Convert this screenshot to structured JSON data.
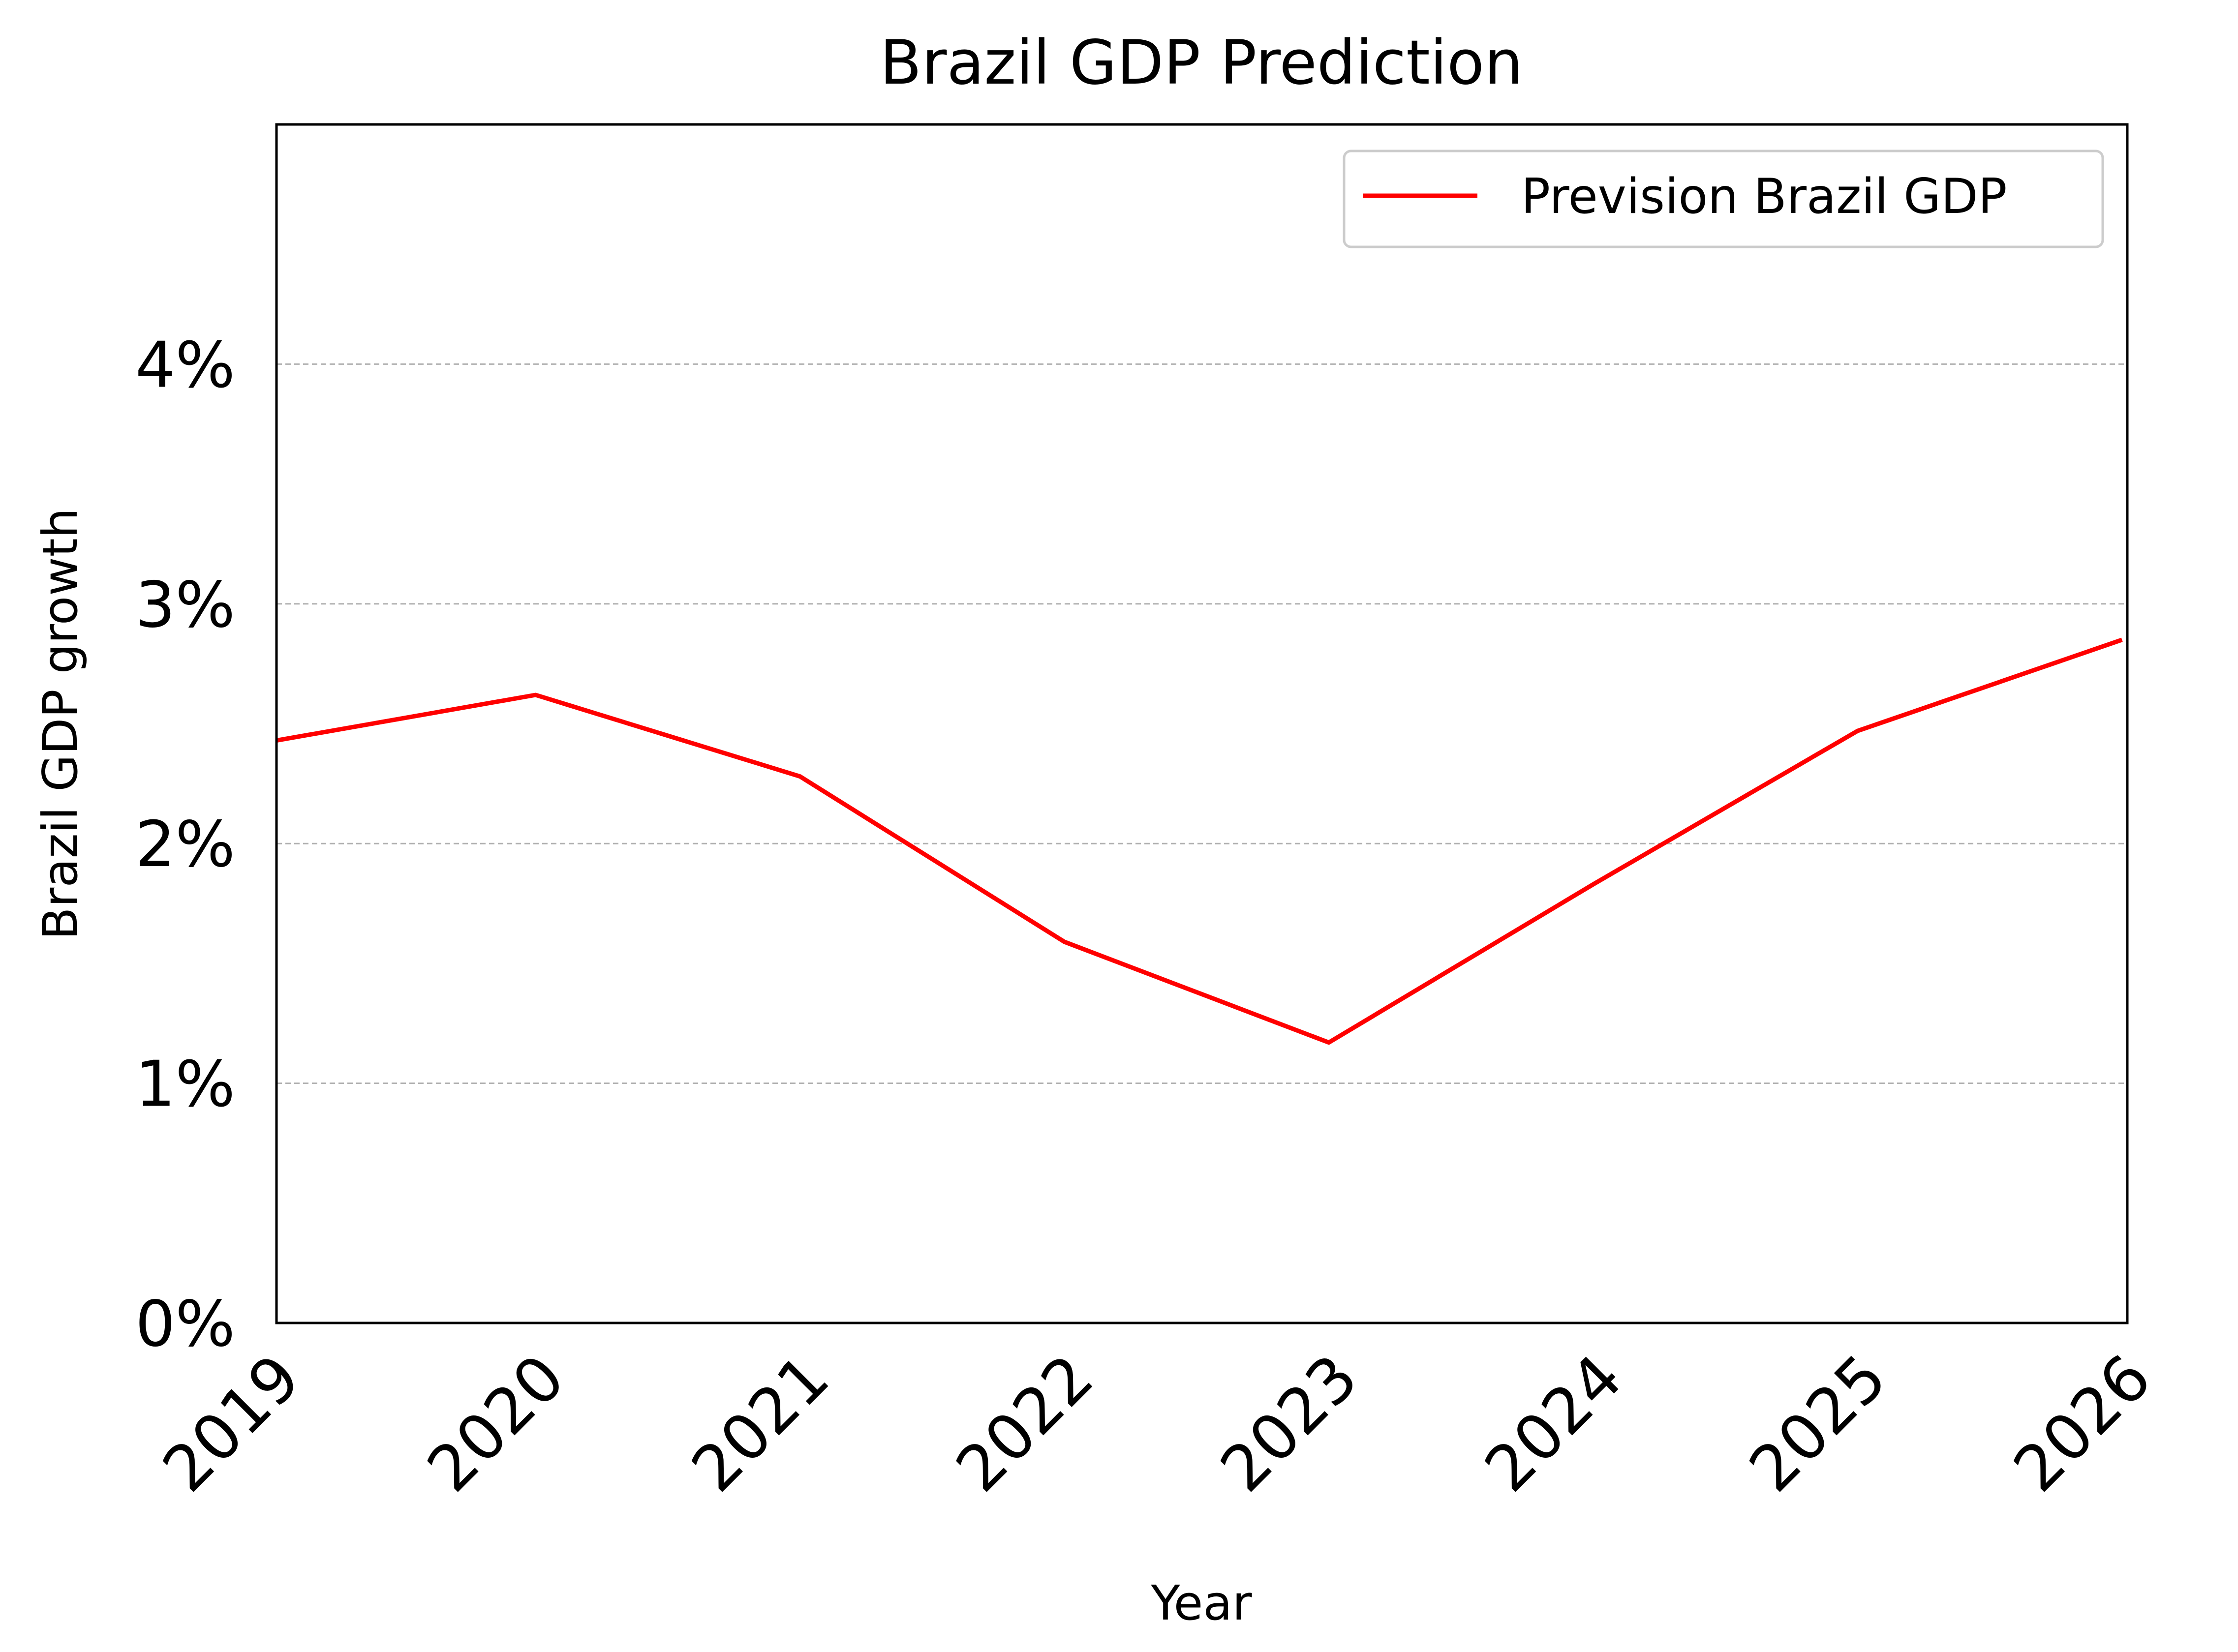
{
  "chart_data": {
    "type": "line",
    "title": "Brazil GDP Prediction",
    "xlabel": "Year",
    "ylabel": "Brazil GDP growth",
    "x": [
      2019.0,
      2019.98,
      2020.98,
      2021.98,
      2022.98,
      2023.98,
      2024.98,
      2025.98
    ],
    "xlim": [
      2019,
      2026
    ],
    "xticks": [
      "2019",
      "2020",
      "2021",
      "2022",
      "2023",
      "2024",
      "2025",
      "2026"
    ],
    "ylim": [
      0,
      5
    ],
    "yticks": [
      {
        "value": 0,
        "label": "0%"
      },
      {
        "value": 1,
        "label": "1%"
      },
      {
        "value": 2,
        "label": "2%"
      },
      {
        "value": 3,
        "label": "3%"
      },
      {
        "value": 4,
        "label": "4%"
      }
    ],
    "grid": {
      "y": true,
      "x": false,
      "style": "dashed"
    },
    "legend": {
      "placement": "top-right"
    },
    "series": [
      {
        "name": "Prevision Brazil GDP",
        "color": "#ff0000",
        "values": [
          2.43,
          2.62,
          2.28,
          1.59,
          1.17,
          1.83,
          2.47,
          2.85
        ]
      }
    ]
  }
}
